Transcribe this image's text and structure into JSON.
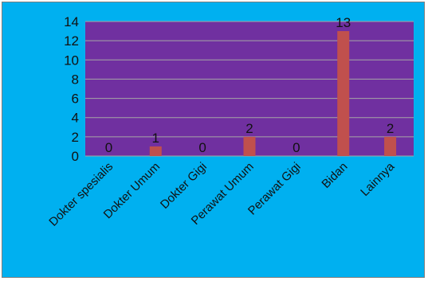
{
  "chart_data": {
    "type": "bar",
    "categories": [
      "Dokter spesialis",
      "Dokter Umum",
      "Dokter Gigi",
      "Perawat Umum",
      "Perawat Gigi",
      "Bidan",
      "Lainnya"
    ],
    "values": [
      0,
      1,
      0,
      2,
      0,
      13,
      2
    ],
    "data_labels": [
      "0",
      "1",
      "0",
      "2",
      "0",
      "13",
      "2"
    ],
    "ylim": [
      0,
      14
    ],
    "yticks": [
      "0",
      "2",
      "4",
      "6",
      "8",
      "10",
      "12",
      "14"
    ],
    "grid": true,
    "title": "",
    "xlabel": "",
    "ylabel": ""
  },
  "colors": {
    "background": "#00b0f0",
    "plot_area": "#7030a0",
    "bar": "#c0504d",
    "gridline": "#a6a6a6"
  }
}
